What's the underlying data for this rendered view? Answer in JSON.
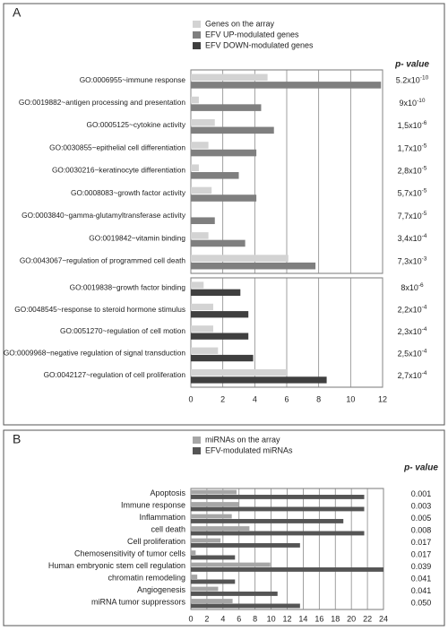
{
  "chart_data": [
    {
      "type": "bar",
      "panel": "A",
      "orientation": "horizontal",
      "p_value_header": "p- value",
      "categories": [
        "GO:0006955~immune response",
        "GO:0019882~antigen processing and presentation",
        "GO:0005125~cytokine activity",
        "GO:0030855~epithelial cell differentiation",
        "GO:0030216~keratinocyte differentiation",
        "GO:0008083~growth factor activity",
        "GO:0003840~gamma-glutamyltransferase activity",
        "GO:0019842~vitamin binding",
        "GO:0043067~regulation of programmed cell death",
        "GO:0019838~growth factor binding",
        "GO:0048545~response to steroid hormone stimulus",
        "GO:0051270~regulation of cell motion",
        "GO:0009968~negative regulation of signal transduction",
        "GO:0042127~regulation of cell proliferation"
      ],
      "series": [
        {
          "name": "Genes on the array",
          "color": "#d3d3d3",
          "values": [
            4.8,
            0.5,
            1.5,
            1.1,
            0.5,
            1.3,
            0,
            1.1,
            6.1,
            0.8,
            1.4,
            1.4,
            1.7,
            6.0
          ]
        },
        {
          "name": "EFV UP-modulated genes",
          "color": "#7f7f7f",
          "values": [
            11.9,
            4.4,
            5.2,
            4.1,
            3.0,
            4.1,
            1.5,
            3.4,
            7.8,
            null,
            null,
            null,
            null,
            null
          ]
        },
        {
          "name": "EFV DOWN-modulated genes",
          "color": "#3f3f3f",
          "values": [
            null,
            null,
            null,
            null,
            null,
            null,
            null,
            null,
            null,
            3.1,
            3.6,
            3.6,
            3.9,
            8.5
          ]
        }
      ],
      "p_values": [
        {
          "base": "5.2x10",
          "exponent": "-10"
        },
        {
          "base": "9x10",
          "exponent": "-10"
        },
        {
          "base": "1,5x10",
          "exponent": "-6"
        },
        {
          "base": "1,7x10",
          "exponent": "-5"
        },
        {
          "base": "2,8x10",
          "exponent": "-5"
        },
        {
          "base": "5,7x10",
          "exponent": "-5"
        },
        {
          "base": "7,7x10",
          "exponent": "-5"
        },
        {
          "base": "3,4x10",
          "exponent": "-4"
        },
        {
          "base": "7,3x10",
          "exponent": "-3"
        },
        {
          "base": "8x10",
          "exponent": "-6"
        },
        {
          "base": "2,2x10",
          "exponent": "-4"
        },
        {
          "base": "2,3x10",
          "exponent": "-4"
        },
        {
          "base": "2,5x10",
          "exponent": "-4"
        },
        {
          "base": "2,7x10",
          "exponent": "-4"
        }
      ],
      "xlim": [
        0,
        12
      ],
      "xticks": [
        0,
        2,
        4,
        6,
        8,
        10,
        12
      ],
      "grid": true
    },
    {
      "type": "bar",
      "panel": "B",
      "orientation": "horizontal",
      "p_value_header": "p- value",
      "categories": [
        "Apoptosis",
        "Immune response",
        "Inflammation",
        "cell death",
        "Cell proliferation",
        "Chemosensitivity of tumor cells",
        "Human embryonic stem cell regulation",
        "chromatin remodeling",
        "Angiogenesis",
        "miRNA tumor suppressors"
      ],
      "series": [
        {
          "name": "miRNAs on the array",
          "color": "#a6a6a6",
          "values": [
            5.7,
            6.0,
            5.1,
            7.3,
            3.7,
            0.6,
            9.9,
            0.8,
            3.4,
            5.2
          ]
        },
        {
          "name": "EFV-modulated miRNAs",
          "color": "#555555",
          "values": [
            21.6,
            21.6,
            19.0,
            21.6,
            13.6,
            5.5,
            24.0,
            5.5,
            10.8,
            13.6
          ]
        }
      ],
      "p_values": [
        "0.001",
        "0.003",
        "0.005",
        "0.008",
        "0.017",
        "0.017",
        "0.039",
        "0.041",
        "0.041",
        "0.050"
      ],
      "xlim": [
        0,
        24
      ],
      "xticks": [
        0,
        2,
        4,
        6,
        8,
        10,
        12,
        14,
        16,
        18,
        20,
        22,
        24
      ],
      "grid": true
    }
  ]
}
